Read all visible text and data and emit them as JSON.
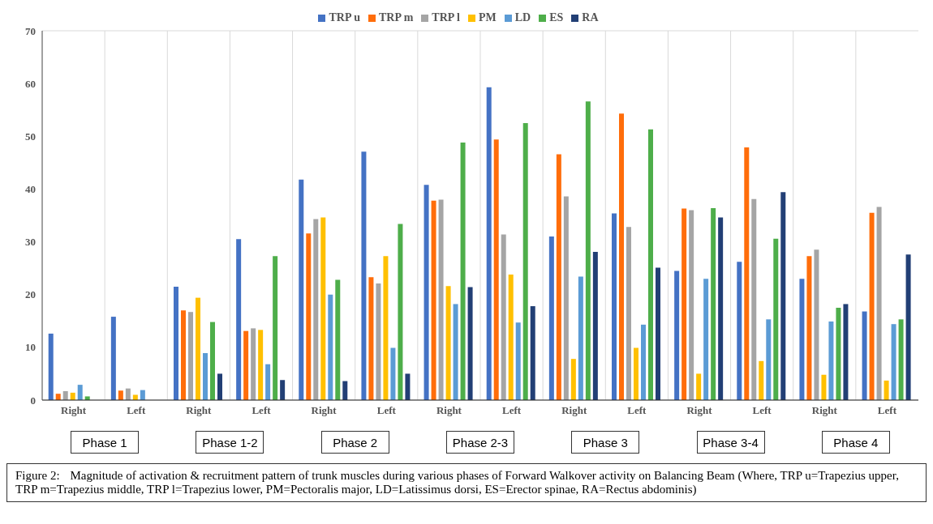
{
  "chart_data": {
    "type": "bar",
    "categories": [
      "Right",
      "Left",
      "Right",
      "Left",
      "Right",
      "Left",
      "Right",
      "Left",
      "Right",
      "Left",
      "Right",
      "Left",
      "Right",
      "Left"
    ],
    "series": [
      {
        "name": "TRP u",
        "color": "#4472c4",
        "values": [
          12.6,
          15.8,
          21.5,
          30.5,
          41.8,
          47.1,
          40.8,
          59.3,
          31.0,
          35.4,
          24.5,
          26.2,
          23.0,
          16.8
        ]
      },
      {
        "name": "TRP m",
        "color": "#ff6d0a",
        "values": [
          1.2,
          1.8,
          17.0,
          13.1,
          31.6,
          23.3,
          37.8,
          49.4,
          46.6,
          54.3,
          36.3,
          47.9,
          27.3,
          35.5
        ]
      },
      {
        "name": "TRP l",
        "color": "#a5a5a5",
        "values": [
          1.7,
          2.2,
          16.7,
          13.6,
          34.3,
          22.1,
          38.0,
          31.4,
          38.6,
          32.8,
          36.0,
          38.1,
          28.5,
          36.6
        ]
      },
      {
        "name": "PM",
        "color": "#ffc000",
        "values": [
          1.4,
          1.0,
          19.4,
          13.3,
          34.6,
          27.3,
          21.6,
          23.8,
          7.8,
          9.9,
          5.0,
          7.4,
          4.8,
          3.7
        ]
      },
      {
        "name": "LD",
        "color": "#5b9bd5",
        "values": [
          2.9,
          1.9,
          8.9,
          6.8,
          20.0,
          9.9,
          18.2,
          14.7,
          23.4,
          14.3,
          23.0,
          15.3,
          14.9,
          14.4
        ]
      },
      {
        "name": "ES",
        "color": "#4eae4a",
        "values": [
          0.7,
          null,
          14.8,
          27.3,
          22.8,
          33.4,
          48.8,
          52.5,
          56.6,
          51.3,
          36.4,
          30.6,
          17.5,
          15.3
        ]
      },
      {
        "name": "RA",
        "color": "#223f75",
        "values": [
          null,
          null,
          5.0,
          3.8,
          3.6,
          5.0,
          21.4,
          17.8,
          28.1,
          25.1,
          34.6,
          39.4,
          18.2,
          27.6
        ]
      }
    ],
    "ylim": [
      0,
      70
    ],
    "yticks": [
      0,
      10,
      20,
      30,
      40,
      50,
      60,
      70
    ],
    "grid": true,
    "legend": "top",
    "annotations": [
      "Phase 1",
      "Phase 1-2",
      "Phase 2",
      "Phase 2-3",
      "Phase 3",
      "Phase 3-4",
      "Phase 4",
      "Figure 2:\tMagnitude of activation & recruitment pattern of trunk muscles during various phases of Forward Walkover activity on Balancing Beam (Where, TRP u=Trapezius upper, TRP m=Trapezius middle, TRP l=Trapezius lower, PM=Pectoralis major, LD=Latissimus dorsi, ES=Erector spinae, RA=Rectus abdominis)"
    ]
  }
}
